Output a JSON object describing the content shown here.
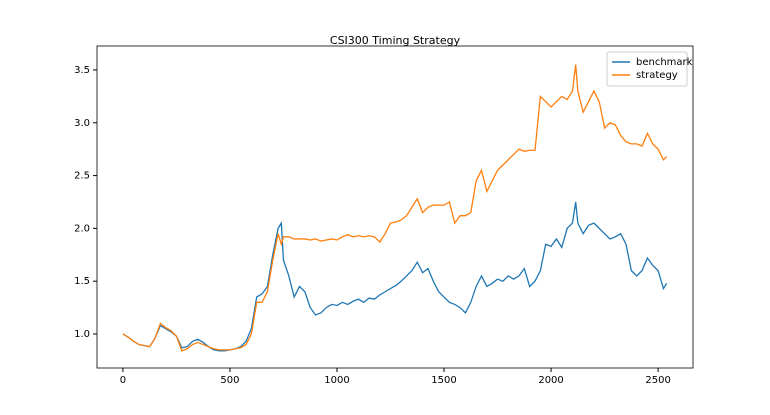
{
  "chart_data": {
    "type": "line",
    "title": "CSI300 Timing Strategy",
    "x": [
      0,
      25,
      50,
      75,
      100,
      125,
      150,
      175,
      200,
      225,
      250,
      275,
      300,
      325,
      350,
      375,
      400,
      425,
      450,
      475,
      500,
      525,
      550,
      575,
      600,
      625,
      650,
      675,
      700,
      725,
      740,
      750,
      775,
      800,
      825,
      850,
      875,
      900,
      925,
      950,
      975,
      1000,
      1025,
      1050,
      1075,
      1100,
      1125,
      1150,
      1175,
      1200,
      1225,
      1250,
      1275,
      1300,
      1325,
      1350,
      1375,
      1400,
      1425,
      1450,
      1475,
      1500,
      1525,
      1550,
      1575,
      1600,
      1625,
      1650,
      1675,
      1700,
      1725,
      1750,
      1775,
      1800,
      1825,
      1850,
      1875,
      1900,
      1925,
      1950,
      1975,
      2000,
      2025,
      2050,
      2075,
      2100,
      2115,
      2125,
      2150,
      2175,
      2200,
      2225,
      2250,
      2275,
      2300,
      2325,
      2350,
      2375,
      2400,
      2425,
      2450,
      2475,
      2500,
      2525,
      2540
    ],
    "series": [
      {
        "name": "benchmark",
        "color": "#1f77b4",
        "values": [
          1.0,
          0.97,
          0.93,
          0.9,
          0.89,
          0.88,
          0.96,
          1.08,
          1.05,
          1.02,
          0.98,
          0.87,
          0.88,
          0.93,
          0.95,
          0.92,
          0.88,
          0.85,
          0.84,
          0.84,
          0.85,
          0.86,
          0.88,
          0.93,
          1.05,
          1.35,
          1.38,
          1.45,
          1.75,
          2.0,
          2.05,
          1.7,
          1.55,
          1.35,
          1.45,
          1.4,
          1.25,
          1.18,
          1.2,
          1.25,
          1.28,
          1.27,
          1.3,
          1.28,
          1.31,
          1.33,
          1.3,
          1.34,
          1.33,
          1.37,
          1.4,
          1.43,
          1.46,
          1.5,
          1.55,
          1.6,
          1.68,
          1.58,
          1.62,
          1.5,
          1.4,
          1.35,
          1.3,
          1.28,
          1.25,
          1.2,
          1.3,
          1.45,
          1.55,
          1.45,
          1.48,
          1.52,
          1.5,
          1.55,
          1.52,
          1.55,
          1.62,
          1.45,
          1.5,
          1.6,
          1.85,
          1.83,
          1.9,
          1.82,
          2.0,
          2.05,
          2.25,
          2.05,
          1.95,
          2.03,
          2.05,
          2.0,
          1.95,
          1.9,
          1.92,
          1.95,
          1.85,
          1.6,
          1.55,
          1.6,
          1.72,
          1.65,
          1.6,
          1.43,
          1.48
        ]
      },
      {
        "name": "strategy",
        "color": "#ff7f0e",
        "values": [
          1.0,
          0.97,
          0.93,
          0.9,
          0.89,
          0.88,
          0.96,
          1.1,
          1.06,
          1.03,
          0.98,
          0.84,
          0.86,
          0.9,
          0.92,
          0.9,
          0.88,
          0.86,
          0.85,
          0.85,
          0.85,
          0.86,
          0.87,
          0.9,
          1.0,
          1.3,
          1.3,
          1.4,
          1.7,
          1.95,
          1.85,
          1.92,
          1.92,
          1.9,
          1.9,
          1.9,
          1.89,
          1.9,
          1.88,
          1.89,
          1.9,
          1.89,
          1.92,
          1.94,
          1.92,
          1.93,
          1.92,
          1.93,
          1.92,
          1.87,
          1.95,
          2.05,
          2.06,
          2.08,
          2.12,
          2.2,
          2.28,
          2.15,
          2.2,
          2.22,
          2.22,
          2.22,
          2.25,
          2.05,
          2.12,
          2.12,
          2.15,
          2.45,
          2.55,
          2.35,
          2.45,
          2.55,
          2.6,
          2.65,
          2.7,
          2.75,
          2.73,
          2.74,
          2.74,
          3.25,
          3.2,
          3.15,
          3.2,
          3.25,
          3.22,
          3.3,
          3.55,
          3.3,
          3.1,
          3.2,
          3.3,
          3.2,
          2.95,
          3.0,
          2.98,
          2.88,
          2.82,
          2.8,
          2.8,
          2.78,
          2.9,
          2.8,
          2.75,
          2.65,
          2.68
        ]
      }
    ],
    "xlim": [
      -121,
      2663
    ],
    "ylim": [
      0.678,
      3.727
    ],
    "xticks": [
      0,
      500,
      1000,
      1500,
      2000,
      2500
    ],
    "yticks": [
      {
        "value": 1,
        "label": "1.0"
      },
      1.5,
      {
        "value": 2,
        "label": "2.0"
      },
      2.5,
      {
        "value": 3,
        "label": "3.0"
      },
      3.5
    ],
    "legend": "upper right"
  }
}
